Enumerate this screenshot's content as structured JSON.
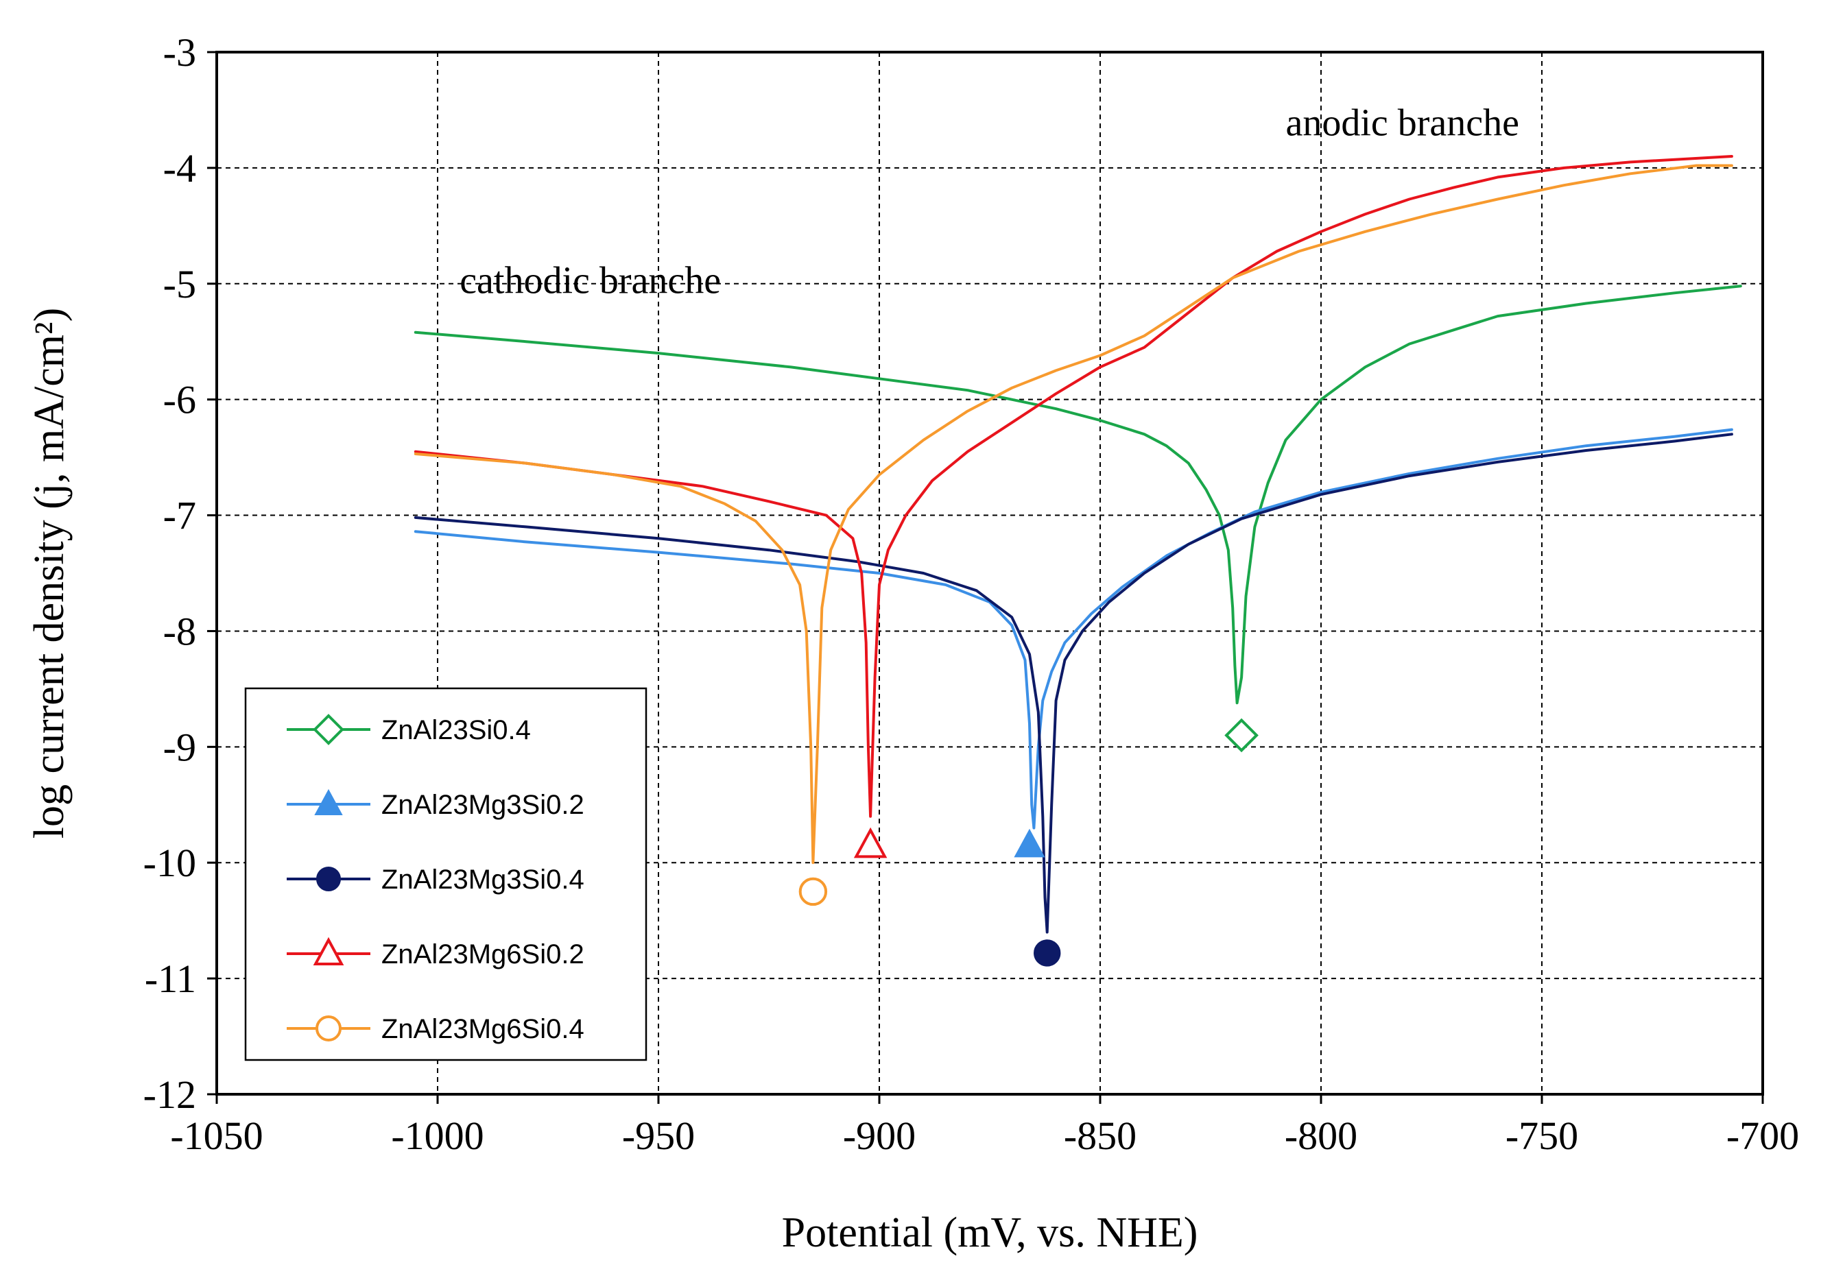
{
  "chart_data": {
    "type": "line",
    "xlabel": "Potential (mV, vs. NHE)",
    "ylabel": "log current density  (j, mA/cm²)",
    "xlim": [
      -1050,
      -700
    ],
    "ylim": [
      -12,
      -3
    ],
    "xticks": [
      -1050,
      -1000,
      -950,
      -900,
      -850,
      -800,
      -750,
      -700
    ],
    "yticks": [
      -3,
      -4,
      -5,
      -6,
      -7,
      -8,
      -9,
      -10,
      -11,
      -12
    ],
    "grid": true,
    "legend_position": "bottom-left",
    "annotations": [
      {
        "text": "cathodic branche",
        "x": -995,
        "y": -5.08
      },
      {
        "text": "anodic branche",
        "x": -808,
        "y": -3.72
      }
    ],
    "series": [
      {
        "name": "ZnAl23Si0.4",
        "color": "#1aa64a",
        "marker": "diamond-open",
        "marker_point": [
          -818,
          -8.9
        ],
        "points": [
          [
            -1005,
            -5.42
          ],
          [
            -980,
            -5.5
          ],
          [
            -950,
            -5.6
          ],
          [
            -920,
            -5.72
          ],
          [
            -900,
            -5.82
          ],
          [
            -880,
            -5.92
          ],
          [
            -870,
            -6.0
          ],
          [
            -860,
            -6.08
          ],
          [
            -850,
            -6.18
          ],
          [
            -840,
            -6.3
          ],
          [
            -835,
            -6.4
          ],
          [
            -830,
            -6.55
          ],
          [
            -826,
            -6.78
          ],
          [
            -823,
            -7.0
          ],
          [
            -821,
            -7.3
          ],
          [
            -820,
            -7.8
          ],
          [
            -819.5,
            -8.3
          ],
          [
            -819,
            -8.62
          ],
          [
            -818,
            -8.4
          ],
          [
            -817,
            -7.7
          ],
          [
            -815,
            -7.1
          ],
          [
            -812,
            -6.72
          ],
          [
            -808,
            -6.35
          ],
          [
            -800,
            -6.0
          ],
          [
            -790,
            -5.72
          ],
          [
            -780,
            -5.52
          ],
          [
            -770,
            -5.4
          ],
          [
            -760,
            -5.28
          ],
          [
            -740,
            -5.17
          ],
          [
            -720,
            -5.08
          ],
          [
            -705,
            -5.02
          ]
        ]
      },
      {
        "name": "ZnAl23Mg3Si0.2",
        "color": "#3b8fe6",
        "marker": "triangle-filled",
        "marker_point": [
          -866,
          -9.85
        ],
        "points": [
          [
            -1005,
            -7.14
          ],
          [
            -980,
            -7.23
          ],
          [
            -950,
            -7.32
          ],
          [
            -920,
            -7.42
          ],
          [
            -900,
            -7.5
          ],
          [
            -885,
            -7.6
          ],
          [
            -875,
            -7.75
          ],
          [
            -870,
            -7.95
          ],
          [
            -867,
            -8.25
          ],
          [
            -866,
            -8.8
          ],
          [
            -865.5,
            -9.5
          ],
          [
            -865,
            -9.7
          ],
          [
            -864,
            -9.0
          ],
          [
            -863,
            -8.6
          ],
          [
            -861,
            -8.35
          ],
          [
            -858,
            -8.1
          ],
          [
            -852,
            -7.85
          ],
          [
            -845,
            -7.62
          ],
          [
            -835,
            -7.35
          ],
          [
            -825,
            -7.15
          ],
          [
            -815,
            -6.97
          ],
          [
            -800,
            -6.8
          ],
          [
            -780,
            -6.64
          ],
          [
            -760,
            -6.51
          ],
          [
            -740,
            -6.4
          ],
          [
            -720,
            -6.32
          ],
          [
            -707,
            -6.26
          ]
        ]
      },
      {
        "name": "ZnAl23Mg3Si0.4",
        "color": "#0d1a66",
        "marker": "circle-filled",
        "marker_point": [
          -862,
          -10.78
        ],
        "points": [
          [
            -1005,
            -7.02
          ],
          [
            -980,
            -7.1
          ],
          [
            -950,
            -7.2
          ],
          [
            -925,
            -7.3
          ],
          [
            -905,
            -7.4
          ],
          [
            -890,
            -7.5
          ],
          [
            -878,
            -7.65
          ],
          [
            -870,
            -7.88
          ],
          [
            -866,
            -8.2
          ],
          [
            -864,
            -8.7
          ],
          [
            -863,
            -9.6
          ],
          [
            -862.5,
            -10.3
          ],
          [
            -862,
            -10.6
          ],
          [
            -861,
            -9.5
          ],
          [
            -860,
            -8.6
          ],
          [
            -858,
            -8.25
          ],
          [
            -854,
            -8.0
          ],
          [
            -848,
            -7.75
          ],
          [
            -840,
            -7.5
          ],
          [
            -830,
            -7.25
          ],
          [
            -818,
            -7.03
          ],
          [
            -800,
            -6.82
          ],
          [
            -780,
            -6.66
          ],
          [
            -760,
            -6.54
          ],
          [
            -740,
            -6.44
          ],
          [
            -720,
            -6.36
          ],
          [
            -707,
            -6.3
          ]
        ]
      },
      {
        "name": "ZnAl23Mg6Si0.2",
        "color": "#e8141c",
        "marker": "triangle-open",
        "marker_point": [
          -902,
          -9.85
        ],
        "points": [
          [
            -1005,
            -6.45
          ],
          [
            -980,
            -6.55
          ],
          [
            -960,
            -6.65
          ],
          [
            -940,
            -6.75
          ],
          [
            -925,
            -6.88
          ],
          [
            -912,
            -7.0
          ],
          [
            -906,
            -7.2
          ],
          [
            -904,
            -7.5
          ],
          [
            -903,
            -8.1
          ],
          [
            -902.5,
            -9.0
          ],
          [
            -902,
            -9.6
          ],
          [
            -901,
            -8.4
          ],
          [
            -900,
            -7.6
          ],
          [
            -898,
            -7.3
          ],
          [
            -894,
            -7.0
          ],
          [
            -888,
            -6.7
          ],
          [
            -880,
            -6.45
          ],
          [
            -870,
            -6.2
          ],
          [
            -860,
            -5.95
          ],
          [
            -850,
            -5.72
          ],
          [
            -840,
            -5.55
          ],
          [
            -830,
            -5.25
          ],
          [
            -820,
            -4.95
          ],
          [
            -810,
            -4.72
          ],
          [
            -800,
            -4.55
          ],
          [
            -790,
            -4.4
          ],
          [
            -780,
            -4.27
          ],
          [
            -770,
            -4.17
          ],
          [
            -760,
            -4.08
          ],
          [
            -745,
            -4.0
          ],
          [
            -730,
            -3.95
          ],
          [
            -707,
            -3.9
          ]
        ]
      },
      {
        "name": "ZnAl23Mg6Si0.4",
        "color": "#f79a2e",
        "marker": "circle-open",
        "marker_point": [
          -915,
          -10.25
        ],
        "points": [
          [
            -1005,
            -6.47
          ],
          [
            -980,
            -6.55
          ],
          [
            -960,
            -6.65
          ],
          [
            -945,
            -6.75
          ],
          [
            -935,
            -6.9
          ],
          [
            -928,
            -7.05
          ],
          [
            -922,
            -7.3
          ],
          [
            -918,
            -7.6
          ],
          [
            -916.5,
            -8.0
          ],
          [
            -915.5,
            -9.0
          ],
          [
            -915,
            -10.0
          ],
          [
            -914,
            -9.0
          ],
          [
            -913,
            -7.8
          ],
          [
            -911,
            -7.3
          ],
          [
            -907,
            -6.95
          ],
          [
            -900,
            -6.65
          ],
          [
            -890,
            -6.35
          ],
          [
            -880,
            -6.1
          ],
          [
            -870,
            -5.9
          ],
          [
            -860,
            -5.75
          ],
          [
            -850,
            -5.62
          ],
          [
            -840,
            -5.45
          ],
          [
            -830,
            -5.2
          ],
          [
            -820,
            -4.95
          ],
          [
            -805,
            -4.72
          ],
          [
            -790,
            -4.55
          ],
          [
            -775,
            -4.4
          ],
          [
            -760,
            -4.27
          ],
          [
            -745,
            -4.15
          ],
          [
            -730,
            -4.05
          ],
          [
            -715,
            -3.98
          ],
          [
            -707,
            -3.98
          ]
        ]
      }
    ]
  }
}
